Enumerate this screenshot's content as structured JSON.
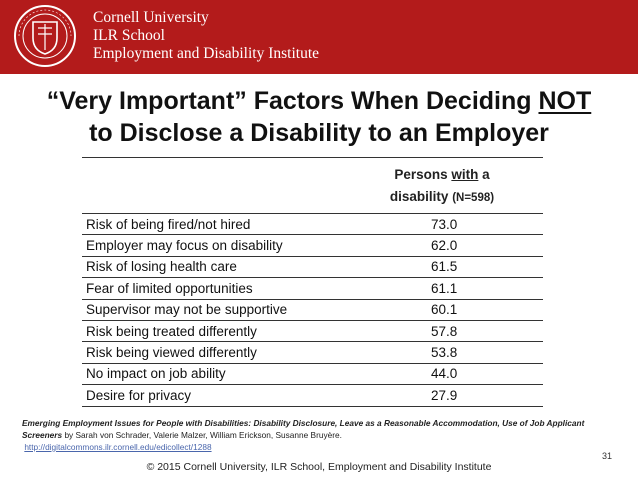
{
  "header": {
    "line1": "Cornell University",
    "line2": "ILR School",
    "line3": "Employment and Disability Institute"
  },
  "title": {
    "before": "“Very Important” Factors When Deciding ",
    "emphasis": "NOT",
    "line2": "to Disclose a Disability to an Employer"
  },
  "table": {
    "column_header": {
      "part1": "Persons ",
      "underlined": "with",
      "part2": " a",
      "line2": "disability ",
      "n": "(N=598)"
    },
    "rows": [
      {
        "factor": "Risk of being fired/not hired",
        "value": "73.0"
      },
      {
        "factor": "Employer may focus on disability",
        "value": "62.0"
      },
      {
        "factor": "Risk of losing health care",
        "value": "61.5"
      },
      {
        "factor": "Fear of limited opportunities",
        "value": "61.1"
      },
      {
        "factor": "Supervisor may not be supportive",
        "value": "60.1"
      },
      {
        "factor": "Risk being treated differently",
        "value": "57.8"
      },
      {
        "factor": "Risk being viewed differently",
        "value": "53.8"
      },
      {
        "factor": "No impact on job ability",
        "value": "44.0"
      },
      {
        "factor": "Desire for privacy",
        "value": "27.9"
      }
    ]
  },
  "citation": {
    "title": "Emerging Employment Issues for People with Disabilities: Disability Disclosure, Leave as a Reasonable Accommodation, Use of Job Applicant Screeners",
    "authors": " by Sarah von Schrader, Valerie Malzer, William Erickson, Susanne Bruyère.",
    "link": "http://digitalcommons.ilr.cornell.edu/edicollect/1288"
  },
  "page_number": "31",
  "copyright": "© 2015 Cornell University, ILR School, Employment and Disability Institute",
  "colors": {
    "banner": "#b31b1b",
    "link": "#4a66ac"
  }
}
